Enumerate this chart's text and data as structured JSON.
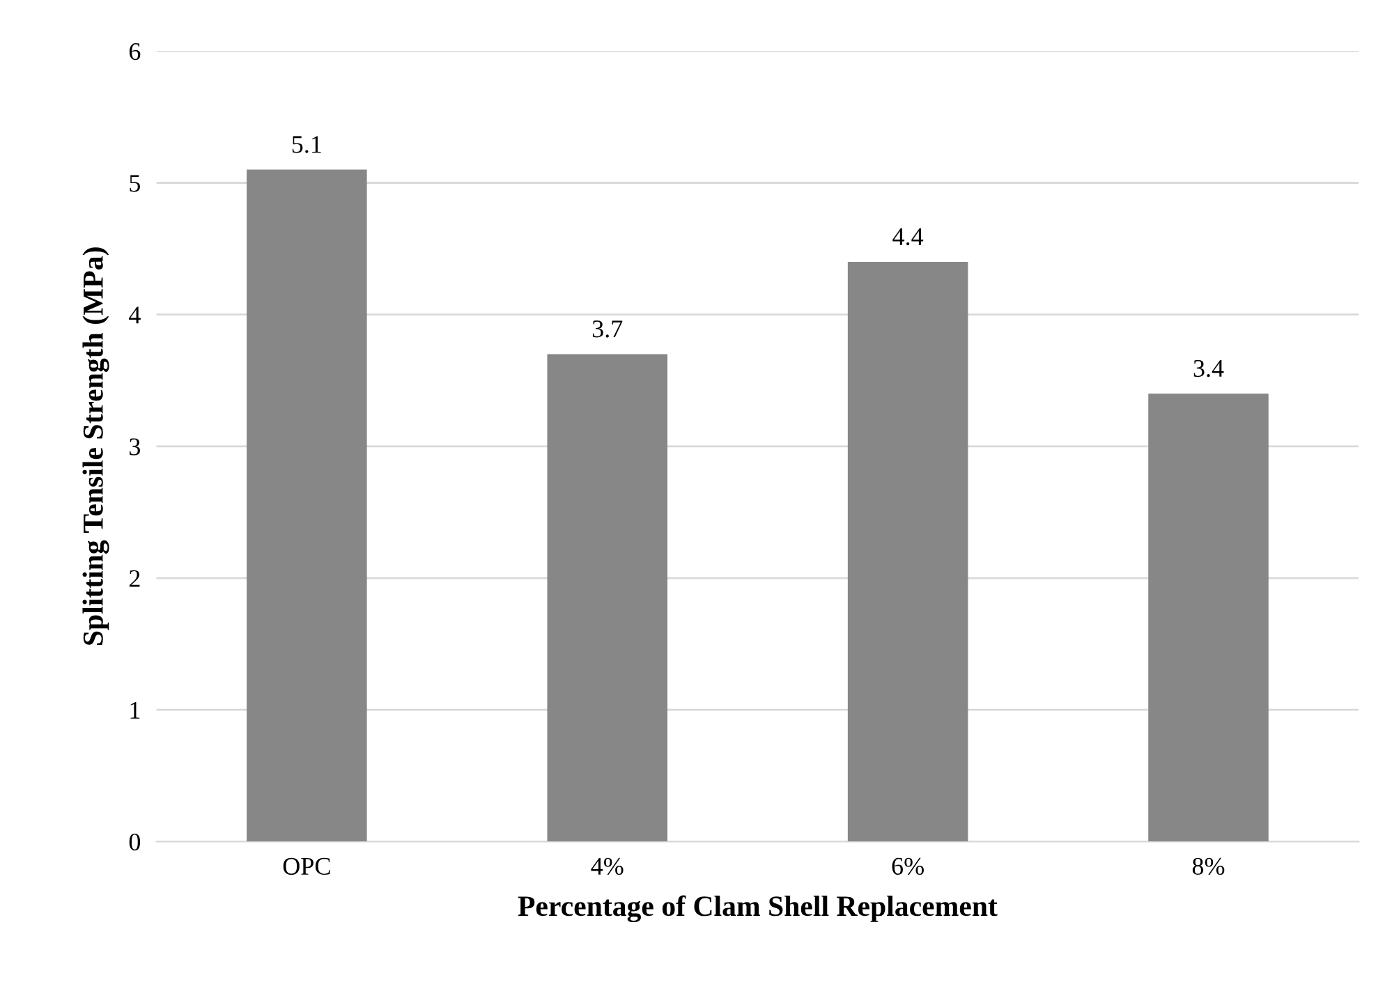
{
  "chart_data": {
    "type": "bar",
    "xlabel": "Percentage of Clam Shell Replacement",
    "ylabel": "Splitting Tensile Strength (MPa)",
    "categories": [
      "OPC",
      "4%",
      "6%",
      "8%"
    ],
    "values": [
      5.1,
      3.7,
      4.4,
      3.4
    ],
    "color": "#878787",
    "ylim": [
      0,
      6
    ],
    "yticks": [
      0,
      1,
      2,
      3,
      4,
      5,
      6
    ],
    "grid": "y",
    "data_labels": true
  }
}
